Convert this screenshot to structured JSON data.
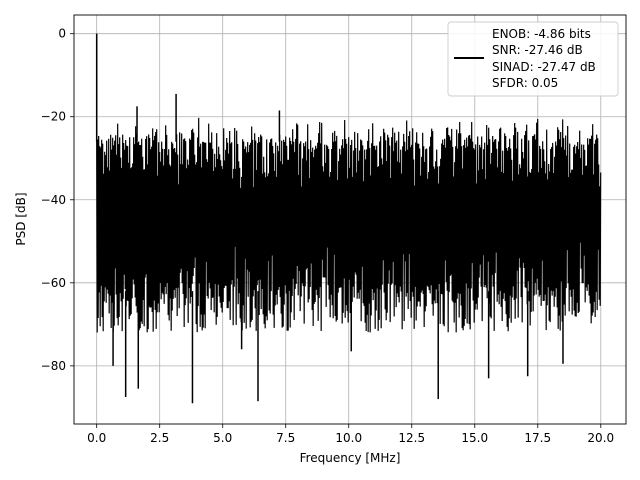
{
  "chart_data": {
    "type": "line",
    "xlabel": "Frequency [MHz]",
    "ylabel": "PSD [dB]",
    "xlim": [
      -0.9,
      21.0
    ],
    "ylim": [
      -94,
      4.5
    ],
    "xticks": [
      0.0,
      2.5,
      5.0,
      7.5,
      10.0,
      12.5,
      15.0,
      17.5,
      20.0
    ],
    "xtick_labels": [
      "0.0",
      "2.5",
      "5.0",
      "7.5",
      "10.0",
      "12.5",
      "15.0",
      "17.5",
      "20.0"
    ],
    "yticks": [
      0,
      -20,
      -40,
      -60,
      -80
    ],
    "ytick_labels": [
      "0",
      "−20",
      "−40",
      "−60",
      "−80"
    ],
    "grid": true,
    "legend_position": "upper right",
    "legend_entries": [
      "ENOB: -4.86 bits",
      "SNR: -27.46 dB",
      "SINAD: -27.47 dB",
      "SFDR: 0.05"
    ],
    "series": [
      {
        "color": "#000000",
        "peak": {
          "x": 0.0,
          "y": 0.0
        },
        "noise_top_range": [
          -28,
          -20
        ],
        "noise_bottom_range": [
          -72,
          -60
        ],
        "spurs": [
          {
            "x": 1.6,
            "y": -17.5
          },
          {
            "x": 3.15,
            "y": -14.5
          },
          {
            "x": 7.25,
            "y": -18.5
          }
        ],
        "dips": [
          {
            "x": 0.65,
            "y": -80
          },
          {
            "x": 1.15,
            "y": -87.5
          },
          {
            "x": 1.65,
            "y": -85.5
          },
          {
            "x": 3.8,
            "y": -89
          },
          {
            "x": 5.75,
            "y": -76
          },
          {
            "x": 6.4,
            "y": -88.5
          },
          {
            "x": 10.1,
            "y": -76.5
          },
          {
            "x": 13.55,
            "y": -88
          },
          {
            "x": 15.55,
            "y": -83
          },
          {
            "x": 17.1,
            "y": -82.5
          },
          {
            "x": 18.5,
            "y": -79.5
          }
        ],
        "x_range": [
          0.0,
          20.0
        ]
      }
    ]
  }
}
